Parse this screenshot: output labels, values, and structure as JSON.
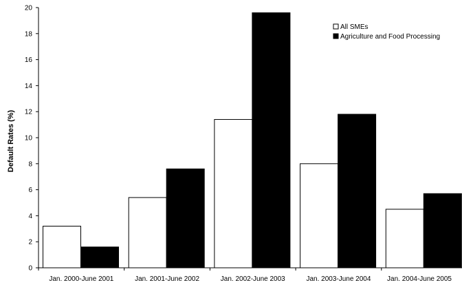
{
  "chart_data": {
    "type": "bar",
    "title": "",
    "xlabel": "",
    "ylabel": "Default Rates (%)",
    "ylim": [
      0,
      20
    ],
    "yticks": [
      0,
      2,
      4,
      6,
      8,
      10,
      12,
      14,
      16,
      18,
      20
    ],
    "grid": false,
    "legend_position": "top-right",
    "categories": [
      "Jan. 2000-June 2001",
      "Jan. 2001-June 2002",
      "Jan. 2002-June 2003",
      "Jan. 2003-June 2004",
      "Jan. 2004-June 2005"
    ],
    "series": [
      {
        "name": "All SMEs",
        "color": "#ffffff",
        "values": [
          3.2,
          5.4,
          11.4,
          8.0,
          4.5
        ]
      },
      {
        "name": "Agriculture and Food Processing",
        "color": "#000000",
        "values": [
          1.6,
          7.6,
          19.6,
          11.8,
          5.7
        ]
      }
    ]
  }
}
